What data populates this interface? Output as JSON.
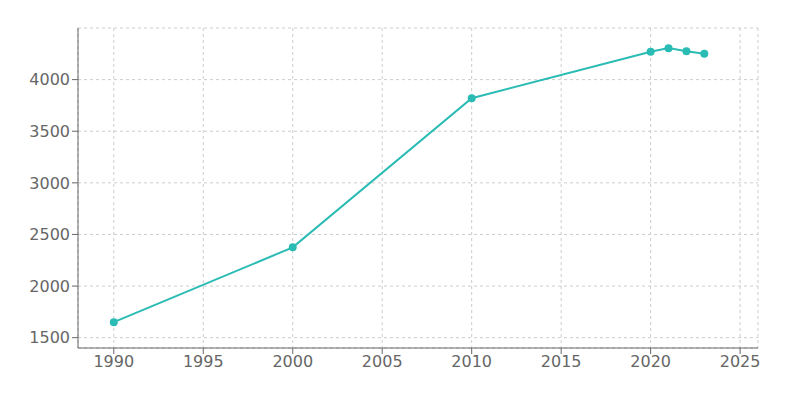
{
  "chart_data": {
    "type": "line",
    "x": [
      1990,
      2000,
      2010,
      2020,
      2021,
      2022,
      2023
    ],
    "values": [
      1650,
      2375,
      3820,
      4270,
      4305,
      4275,
      4250
    ],
    "color": "#2abcb4",
    "marker": "circle",
    "xlim": [
      1988,
      2026
    ],
    "ylim": [
      1400,
      4500
    ],
    "xticks": [
      1990,
      1995,
      2000,
      2005,
      2010,
      2015,
      2020,
      2025
    ],
    "yticks": [
      1500,
      2000,
      2500,
      3000,
      3500,
      4000
    ],
    "grid": true
  }
}
